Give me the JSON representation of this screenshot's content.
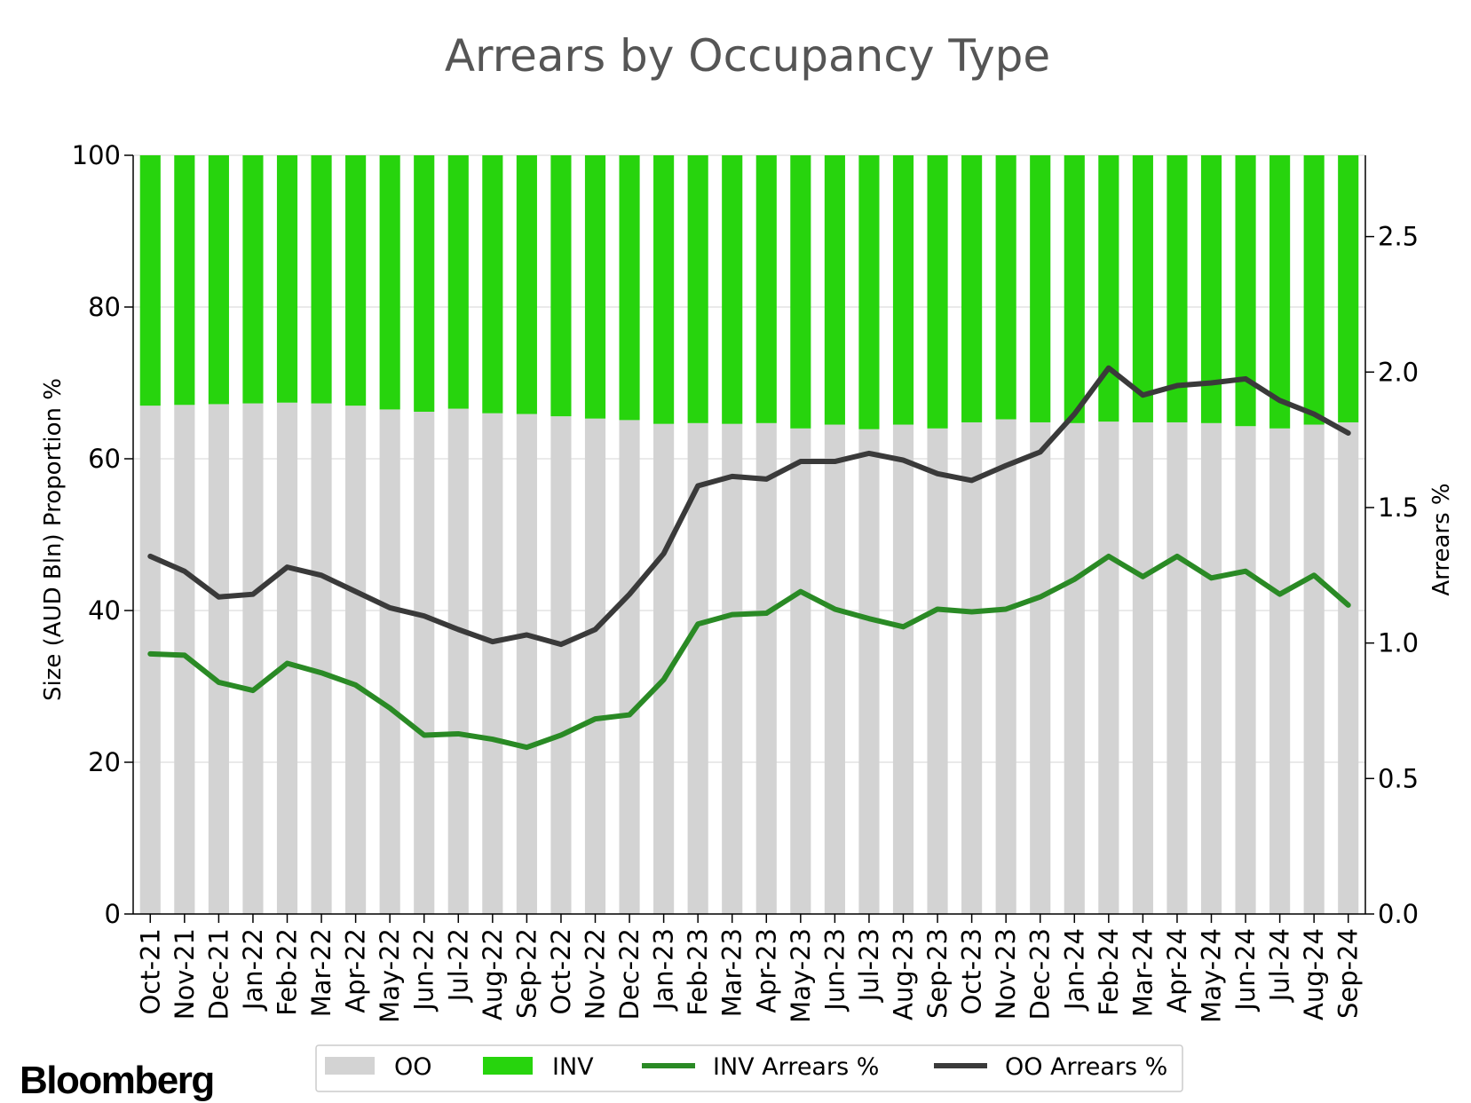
{
  "brand": "Bloomberg",
  "chart_data": {
    "type": "bar",
    "title": "Arrears by Occupancy Type",
    "ylabel": "Size (AUD Bln) Proportion %",
    "y2label": "Arrears %",
    "ylim": [
      0,
      100
    ],
    "y2lim": [
      0,
      2.8
    ],
    "yticks": [
      "0",
      "20",
      "40",
      "60",
      "80",
      "100"
    ],
    "y2ticks": [
      "0.0",
      "0.5",
      "1.0",
      "1.5",
      "2.0",
      "2.5"
    ],
    "grid": true,
    "stacked": true,
    "legend_position": "bottom",
    "categories": [
      "Oct-21",
      "Nov-21",
      "Dec-21",
      "Jan-22",
      "Feb-22",
      "Mar-22",
      "Apr-22",
      "May-22",
      "Jun-22",
      "Jul-22",
      "Aug-22",
      "Sep-22",
      "Oct-22",
      "Nov-22",
      "Dec-22",
      "Jan-23",
      "Feb-23",
      "Mar-23",
      "Apr-23",
      "May-23",
      "Jun-23",
      "Jul-23",
      "Aug-23",
      "Sep-23",
      "Oct-23",
      "Nov-23",
      "Dec-23",
      "Jan-24",
      "Feb-24",
      "Mar-24",
      "Apr-24",
      "May-24",
      "Jun-24",
      "Jul-24",
      "Aug-24",
      "Sep-24"
    ],
    "series": [
      {
        "name": "OO",
        "kind": "bar",
        "axis": "left",
        "color": "#d3d3d3",
        "values": [
          67.0,
          67.1,
          67.2,
          67.3,
          67.4,
          67.3,
          67.0,
          66.5,
          66.2,
          66.6,
          66.0,
          65.9,
          65.6,
          65.3,
          65.1,
          64.6,
          64.7,
          64.6,
          64.7,
          64.0,
          64.5,
          63.9,
          64.5,
          64.0,
          64.8,
          65.2,
          64.8,
          64.7,
          64.9,
          64.8,
          64.8,
          64.7,
          64.3,
          64.0,
          64.5,
          64.8
        ]
      },
      {
        "name": "INV",
        "kind": "bar",
        "axis": "left",
        "color": "#27d40d",
        "values": [
          33.0,
          32.9,
          32.8,
          32.7,
          32.6,
          32.7,
          33.0,
          33.5,
          33.8,
          33.4,
          34.0,
          34.1,
          34.4,
          34.7,
          34.9,
          35.4,
          35.3,
          35.4,
          35.3,
          36.0,
          35.5,
          36.1,
          35.5,
          36.0,
          35.2,
          34.8,
          35.2,
          35.3,
          35.1,
          35.2,
          35.2,
          35.3,
          35.7,
          36.0,
          35.5,
          35.2
        ]
      },
      {
        "name": "INV Arrears %",
        "kind": "line",
        "axis": "right",
        "color": "#2a8a25",
        "values": [
          0.96,
          0.955,
          0.855,
          0.825,
          0.925,
          0.89,
          0.845,
          0.76,
          0.66,
          0.665,
          0.645,
          0.615,
          0.66,
          0.72,
          0.735,
          0.865,
          1.07,
          1.105,
          1.11,
          1.19,
          1.125,
          1.09,
          1.06,
          1.125,
          1.115,
          1.125,
          1.17,
          1.235,
          1.32,
          1.245,
          1.32,
          1.24,
          1.265,
          1.18,
          1.25,
          1.14
        ]
      },
      {
        "name": "OO Arrears %",
        "kind": "line",
        "axis": "right",
        "color": "#3a3a3a",
        "values": [
          1.32,
          1.265,
          1.17,
          1.18,
          1.28,
          1.25,
          1.19,
          1.13,
          1.1,
          1.05,
          1.005,
          1.03,
          0.995,
          1.05,
          1.18,
          1.33,
          1.58,
          1.615,
          1.605,
          1.67,
          1.67,
          1.7,
          1.675,
          1.625,
          1.6,
          1.655,
          1.705,
          1.845,
          2.015,
          1.915,
          1.95,
          1.96,
          1.975,
          1.895,
          1.845,
          1.775
        ]
      }
    ]
  }
}
